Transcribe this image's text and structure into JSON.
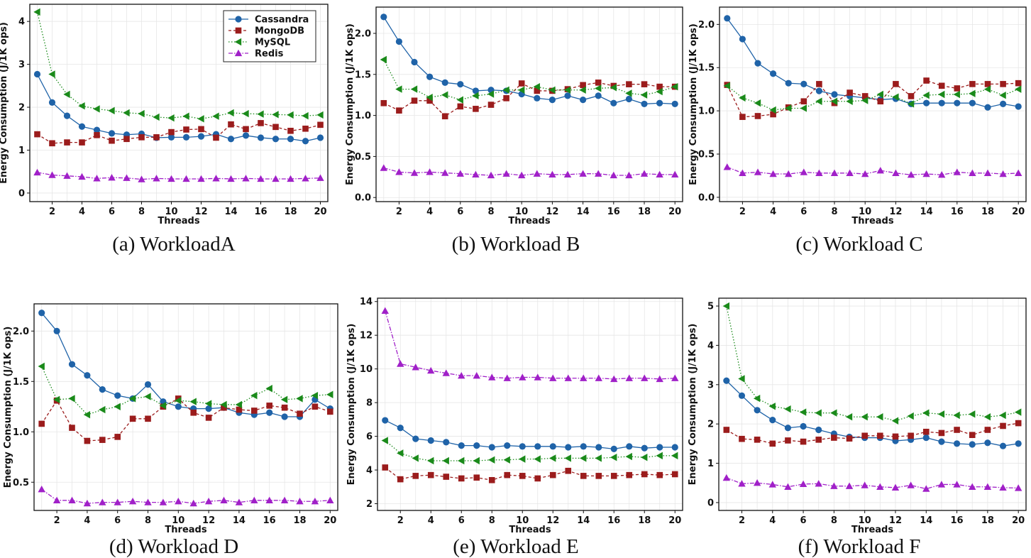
{
  "series_styles": [
    {
      "name": "Cassandra",
      "color": "#1f63a8",
      "marker": "circle",
      "dash": ""
    },
    {
      "name": "MongoDB",
      "color": "#9b1c1c",
      "marker": "square",
      "dash": "4,3"
    },
    {
      "name": "MySQL",
      "color": "#1a8a1a",
      "marker": "triangle-left",
      "dash": "1.5,2.5"
    },
    {
      "name": "Redis",
      "color": "#a020c8",
      "marker": "triangle-up",
      "dash": "6,2,1.5,2"
    }
  ],
  "chart_data": [
    {
      "type": "line",
      "caption": "(a) WorkloadA",
      "xlabel": "Threads",
      "ylabel": "Energy Consumption (J/1K ops)",
      "x": [
        1,
        2,
        3,
        4,
        5,
        6,
        7,
        8,
        9,
        10,
        11,
        12,
        13,
        14,
        15,
        16,
        17,
        18,
        19,
        20
      ],
      "xticks": [
        2,
        4,
        6,
        8,
        10,
        12,
        14,
        16,
        18,
        20
      ],
      "yticks": [
        "0",
        "1",
        "2",
        "3",
        "4"
      ],
      "ylim": [
        -0.2,
        4.4
      ],
      "legend": "top-right",
      "series": [
        {
          "name": "Cassandra",
          "values": [
            2.77,
            2.11,
            1.8,
            1.55,
            1.47,
            1.39,
            1.36,
            1.38,
            1.29,
            1.3,
            1.3,
            1.32,
            1.37,
            1.26,
            1.34,
            1.29,
            1.26,
            1.26,
            1.21,
            1.29
          ]
        },
        {
          "name": "MongoDB",
          "values": [
            1.37,
            1.16,
            1.18,
            1.18,
            1.35,
            1.22,
            1.26,
            1.3,
            1.3,
            1.42,
            1.48,
            1.49,
            1.29,
            1.6,
            1.49,
            1.63,
            1.54,
            1.45,
            1.5,
            1.59
          ]
        },
        {
          "name": "MySQL",
          "values": [
            4.22,
            2.77,
            2.3,
            2.03,
            1.96,
            1.92,
            1.87,
            1.85,
            1.77,
            1.75,
            1.79,
            1.73,
            1.79,
            1.87,
            1.85,
            1.84,
            1.83,
            1.82,
            1.8,
            1.82
          ]
        },
        {
          "name": "Redis",
          "values": [
            0.48,
            0.42,
            0.4,
            0.38,
            0.34,
            0.36,
            0.35,
            0.32,
            0.34,
            0.33,
            0.33,
            0.33,
            0.34,
            0.33,
            0.34,
            0.33,
            0.33,
            0.33,
            0.34,
            0.35
          ]
        }
      ]
    },
    {
      "type": "line",
      "caption": "(b) Workload B",
      "xlabel": "Threads",
      "ylabel": "Energy Consumption (J/1K ops)",
      "x": [
        1,
        2,
        3,
        4,
        5,
        6,
        7,
        8,
        9,
        10,
        11,
        12,
        13,
        14,
        15,
        16,
        17,
        18,
        19,
        20
      ],
      "xticks": [
        2,
        4,
        6,
        8,
        10,
        12,
        14,
        16,
        18,
        20
      ],
      "yticks": [
        "0.0",
        "0.5",
        "1.0",
        "1.5",
        "2.0"
      ],
      "ylim": [
        -0.05,
        2.32
      ],
      "legend": "",
      "series": [
        {
          "name": "Cassandra",
          "values": [
            2.2,
            1.9,
            1.65,
            1.47,
            1.4,
            1.38,
            1.3,
            1.31,
            1.3,
            1.26,
            1.21,
            1.19,
            1.24,
            1.19,
            1.24,
            1.15,
            1.2,
            1.14,
            1.15,
            1.14
          ]
        },
        {
          "name": "MongoDB",
          "values": [
            1.15,
            1.06,
            1.18,
            1.18,
            0.99,
            1.11,
            1.08,
            1.13,
            1.21,
            1.39,
            1.3,
            1.3,
            1.32,
            1.37,
            1.4,
            1.36,
            1.38,
            1.38,
            1.35,
            1.35
          ]
        },
        {
          "name": "MySQL",
          "values": [
            1.68,
            1.32,
            1.32,
            1.22,
            1.25,
            1.19,
            1.24,
            1.26,
            1.31,
            1.31,
            1.35,
            1.31,
            1.31,
            1.31,
            1.33,
            1.34,
            1.27,
            1.25,
            1.29,
            1.35
          ]
        },
        {
          "name": "Redis",
          "values": [
            0.36,
            0.31,
            0.3,
            0.31,
            0.3,
            0.29,
            0.28,
            0.27,
            0.29,
            0.27,
            0.29,
            0.28,
            0.28,
            0.29,
            0.29,
            0.27,
            0.27,
            0.29,
            0.28,
            0.28
          ]
        }
      ]
    },
    {
      "type": "line",
      "caption": "(c) Workload C",
      "xlabel": "Threads",
      "ylabel": "Energy Consumption (J/1K ops)",
      "x": [
        1,
        2,
        3,
        4,
        5,
        6,
        7,
        8,
        9,
        10,
        11,
        12,
        13,
        14,
        15,
        16,
        17,
        18,
        19,
        20
      ],
      "xticks": [
        2,
        4,
        6,
        8,
        10,
        12,
        14,
        16,
        18,
        20
      ],
      "yticks": [
        "0.0",
        "0.5",
        "1.0",
        "1.5",
        "2.0"
      ],
      "ylim": [
        -0.05,
        2.2
      ],
      "legend": "",
      "series": [
        {
          "name": "Cassandra",
          "values": [
            2.07,
            1.83,
            1.55,
            1.43,
            1.32,
            1.31,
            1.23,
            1.19,
            1.17,
            1.15,
            1.13,
            1.14,
            1.08,
            1.09,
            1.09,
            1.09,
            1.09,
            1.04,
            1.08,
            1.05
          ]
        },
        {
          "name": "MongoDB",
          "values": [
            1.3,
            0.93,
            0.94,
            0.96,
            1.04,
            1.11,
            1.31,
            1.09,
            1.21,
            1.17,
            1.11,
            1.31,
            1.17,
            1.35,
            1.29,
            1.26,
            1.31,
            1.31,
            1.31,
            1.32
          ]
        },
        {
          "name": "MySQL",
          "values": [
            1.29,
            1.15,
            1.09,
            1.01,
            1.03,
            1.03,
            1.11,
            1.11,
            1.11,
            1.12,
            1.19,
            1.16,
            1.08,
            1.18,
            1.19,
            1.19,
            1.2,
            1.25,
            1.18,
            1.25
          ]
        },
        {
          "name": "Redis",
          "values": [
            0.35,
            0.28,
            0.29,
            0.27,
            0.27,
            0.29,
            0.28,
            0.28,
            0.28,
            0.27,
            0.31,
            0.28,
            0.26,
            0.27,
            0.26,
            0.29,
            0.28,
            0.28,
            0.27,
            0.28
          ]
        }
      ]
    },
    {
      "type": "line",
      "caption": "(d) Workload D",
      "xlabel": "Threads",
      "ylabel": "Energy Consumption (J/1K ops)",
      "x": [
        1,
        2,
        3,
        4,
        5,
        6,
        7,
        8,
        9,
        10,
        11,
        12,
        13,
        14,
        15,
        16,
        17,
        18,
        19,
        20
      ],
      "xticks": [
        2,
        4,
        6,
        8,
        10,
        12,
        14,
        16,
        18,
        20
      ],
      "yticks": [
        "0.5",
        "1.0",
        "1.5",
        "2.0"
      ],
      "ylim": [
        0.22,
        2.27
      ],
      "legend": "",
      "series": [
        {
          "name": "Cassandra",
          "values": [
            2.18,
            2.0,
            1.67,
            1.56,
            1.42,
            1.36,
            1.33,
            1.47,
            1.3,
            1.25,
            1.23,
            1.23,
            1.24,
            1.19,
            1.17,
            1.19,
            1.15,
            1.15,
            1.32,
            1.23
          ]
        },
        {
          "name": "MongoDB",
          "values": [
            1.08,
            1.31,
            1.04,
            0.91,
            0.92,
            0.95,
            1.13,
            1.13,
            1.25,
            1.33,
            1.19,
            1.14,
            1.24,
            1.22,
            1.21,
            1.26,
            1.24,
            1.18,
            1.25,
            1.2
          ]
        },
        {
          "name": "MySQL",
          "values": [
            1.65,
            1.32,
            1.33,
            1.17,
            1.22,
            1.25,
            1.33,
            1.35,
            1.26,
            1.31,
            1.3,
            1.28,
            1.27,
            1.27,
            1.36,
            1.43,
            1.32,
            1.33,
            1.36,
            1.37
          ]
        },
        {
          "name": "Redis",
          "values": [
            0.43,
            0.32,
            0.32,
            0.29,
            0.3,
            0.3,
            0.31,
            0.3,
            0.3,
            0.31,
            0.29,
            0.31,
            0.32,
            0.3,
            0.32,
            0.32,
            0.32,
            0.31,
            0.31,
            0.32
          ]
        }
      ]
    },
    {
      "type": "line",
      "caption": "(e) Workload E",
      "xlabel": "Threads",
      "ylabel": "Energy Consumption (J/1K ops)",
      "x": [
        1,
        2,
        3,
        4,
        5,
        6,
        7,
        8,
        9,
        10,
        11,
        12,
        13,
        14,
        15,
        16,
        17,
        18,
        19,
        20
      ],
      "xticks": [
        2,
        4,
        6,
        8,
        10,
        12,
        14,
        16,
        18,
        20
      ],
      "yticks": [
        "2",
        "4",
        "6",
        "8",
        "10",
        "12",
        "14"
      ],
      "ylim": [
        1.6,
        14.2
      ],
      "legend": "",
      "series": [
        {
          "name": "Cassandra",
          "values": [
            6.95,
            6.5,
            5.85,
            5.75,
            5.65,
            5.45,
            5.45,
            5.35,
            5.45,
            5.4,
            5.4,
            5.4,
            5.35,
            5.4,
            5.35,
            5.25,
            5.4,
            5.3,
            5.35,
            5.35
          ]
        },
        {
          "name": "MongoDB",
          "values": [
            4.15,
            3.45,
            3.65,
            3.7,
            3.6,
            3.5,
            3.55,
            3.4,
            3.7,
            3.65,
            3.5,
            3.7,
            3.95,
            3.65,
            3.65,
            3.65,
            3.7,
            3.75,
            3.7,
            3.75
          ]
        },
        {
          "name": "MySQL",
          "values": [
            5.75,
            5.0,
            4.7,
            4.55,
            4.55,
            4.55,
            4.55,
            4.6,
            4.6,
            4.65,
            4.65,
            4.7,
            4.7,
            4.7,
            4.7,
            4.75,
            4.8,
            4.75,
            4.85,
            4.85
          ]
        },
        {
          "name": "Redis",
          "values": [
            13.45,
            10.3,
            10.1,
            9.9,
            9.75,
            9.6,
            9.6,
            9.5,
            9.45,
            9.5,
            9.5,
            9.45,
            9.45,
            9.45,
            9.45,
            9.4,
            9.45,
            9.45,
            9.4,
            9.45
          ]
        }
      ]
    },
    {
      "type": "line",
      "caption": "(f) Workload F",
      "xlabel": "Threads",
      "ylabel": "Energy Consumption (J/1K ops)",
      "x": [
        1,
        2,
        3,
        4,
        5,
        6,
        7,
        8,
        9,
        10,
        11,
        12,
        13,
        14,
        15,
        16,
        17,
        18,
        19,
        20
      ],
      "xticks": [
        2,
        4,
        6,
        8,
        10,
        12,
        14,
        16,
        18,
        20
      ],
      "yticks": [
        "0",
        "1",
        "2",
        "3",
        "4",
        "5"
      ],
      "ylim": [
        -0.2,
        5.2
      ],
      "legend": "",
      "series": [
        {
          "name": "Cassandra",
          "values": [
            3.1,
            2.72,
            2.35,
            2.1,
            1.9,
            1.94,
            1.85,
            1.75,
            1.67,
            1.65,
            1.65,
            1.57,
            1.6,
            1.65,
            1.55,
            1.5,
            1.48,
            1.52,
            1.44,
            1.5
          ]
        },
        {
          "name": "MongoDB",
          "values": [
            1.85,
            1.62,
            1.6,
            1.5,
            1.58,
            1.55,
            1.6,
            1.65,
            1.63,
            1.7,
            1.7,
            1.68,
            1.7,
            1.8,
            1.77,
            1.85,
            1.72,
            1.85,
            1.95,
            2.02
          ]
        },
        {
          "name": "MySQL",
          "values": [
            5.0,
            3.15,
            2.65,
            2.45,
            2.38,
            2.3,
            2.28,
            2.28,
            2.18,
            2.18,
            2.18,
            2.08,
            2.2,
            2.28,
            2.25,
            2.22,
            2.25,
            2.18,
            2.22,
            2.3
          ]
        },
        {
          "name": "Redis",
          "values": [
            0.63,
            0.48,
            0.5,
            0.46,
            0.4,
            0.47,
            0.48,
            0.42,
            0.42,
            0.44,
            0.4,
            0.38,
            0.44,
            0.35,
            0.46,
            0.46,
            0.4,
            0.4,
            0.38,
            0.37
          ]
        }
      ]
    }
  ]
}
